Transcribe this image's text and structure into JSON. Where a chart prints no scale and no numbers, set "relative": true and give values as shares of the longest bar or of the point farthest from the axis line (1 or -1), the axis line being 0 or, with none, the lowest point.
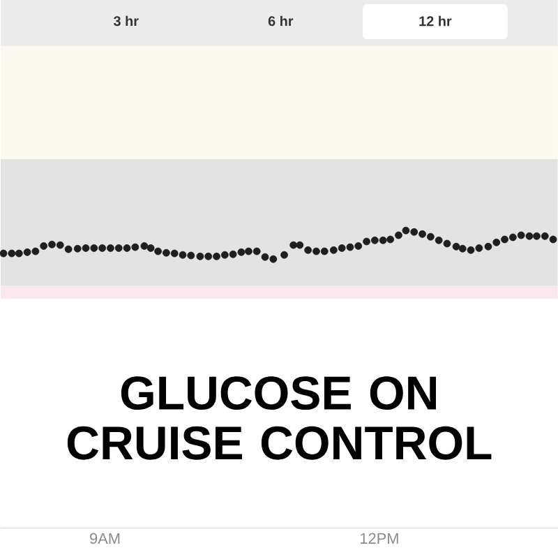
{
  "chart_data": {
    "type": "scatter",
    "title": "GLUCOSE ON CRUISE CONTROL",
    "relative": true,
    "annotations": [
      "3 hr",
      "6 hr",
      "12 hr"
    ],
    "x": [
      7.89,
      7.98,
      8.06,
      8.15,
      8.24,
      8.33,
      8.42,
      8.51,
      8.6,
      8.7,
      8.79,
      8.88,
      8.97,
      9.06,
      9.15,
      9.24,
      9.33,
      9.43,
      9.5,
      9.58,
      9.67,
      9.76,
      9.85,
      9.94,
      10.04,
      10.13,
      10.22,
      10.31,
      10.4,
      10.49,
      10.57,
      10.66,
      10.75,
      10.84,
      10.96,
      11.06,
      11.13,
      11.22,
      11.31,
      11.4,
      11.5,
      11.59,
      11.68,
      11.77,
      11.86,
      11.95,
      12.04,
      12.12,
      12.21,
      12.29,
      12.38,
      12.47,
      12.56,
      12.65,
      12.74,
      12.84,
      12.91,
      13.0,
      13.09,
      13.19,
      13.28,
      13.37,
      13.46,
      13.55,
      13.64,
      13.72,
      13.81,
      13.9
    ],
    "values": [
      0.923,
      0.923,
      0.923,
      0.927,
      0.93,
      0.948,
      0.953,
      0.951,
      0.937,
      0.939,
      0.941,
      0.941,
      0.941,
      0.941,
      0.941,
      0.941,
      0.944,
      0.948,
      0.941,
      0.93,
      0.925,
      0.923,
      0.918,
      0.916,
      0.913,
      0.913,
      0.913,
      0.918,
      0.92,
      0.927,
      0.93,
      0.93,
      0.911,
      0.904,
      0.918,
      0.951,
      0.951,
      0.934,
      0.93,
      0.93,
      0.934,
      0.941,
      0.944,
      0.948,
      0.963,
      0.967,
      0.967,
      0.97,
      0.984,
      1,
      0.995,
      0.988,
      0.979,
      0.967,
      0.956,
      0.946,
      0.939,
      0.934,
      0.941,
      0.946,
      0.96,
      0.97,
      0.977,
      0.984,
      0.981,
      0.981,
      0.981,
      0.97
    ],
    "color": "#1f1f1f",
    "marker": "circle",
    "xlim": [
      7.86,
      13.95
    ],
    "xticks": [
      {
        "value": 9,
        "label": "9AM"
      },
      {
        "value": 12,
        "label": "12PM"
      }
    ],
    "bands": [
      {
        "axis": "y",
        "from": 1.24,
        "to": 1.62,
        "color": "#fbf9f0"
      },
      {
        "axis": "y",
        "from": 0.815,
        "to": 1.24,
        "color": "#e3e3e3"
      },
      {
        "axis": "y",
        "from": 0.77,
        "to": 0.815,
        "color": "#fbe8ee"
      }
    ]
  }
}
